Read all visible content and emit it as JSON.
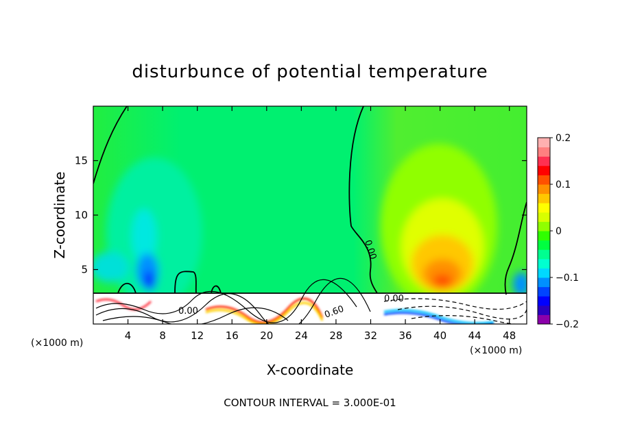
{
  "chart_data": {
    "type": "heatmap",
    "title": "disturbunce of potential temperature",
    "xlabel": "X-coordinate",
    "ylabel": "Z-coordinate",
    "x_unit_left": "(×1000 m)",
    "x_unit_right": "(×1000 m)",
    "xlim": [
      0,
      50
    ],
    "ylim": [
      0,
      20
    ],
    "x_ticks": [
      4,
      8,
      12,
      16,
      20,
      24,
      28,
      32,
      36,
      40,
      44,
      48
    ],
    "x_tick_labels": [
      "4",
      "8",
      "12",
      "16",
      "20",
      "24",
      "28",
      "32",
      "36",
      "40",
      "44",
      "48"
    ],
    "y_ticks": [
      5,
      10,
      15
    ],
    "y_tick_labels": [
      "5",
      "10",
      "15"
    ],
    "colorbar": {
      "min": -0.2,
      "max": 0.2,
      "tick_values": [
        0.2,
        0.1,
        0,
        -0.1,
        -0.2
      ],
      "tick_labels": [
        "0.2",
        "0.1",
        "0",
        "−0.1",
        "−0.2"
      ],
      "colors": [
        "#8b00aa",
        "#2a00c0",
        "#0000ff",
        "#0044ff",
        "#0090ff",
        "#00d8ff",
        "#00ffd0",
        "#00ff90",
        "#00ff40",
        "#30ff00",
        "#90ff00",
        "#d8ff00",
        "#ffff00",
        "#ffc800",
        "#ff9000",
        "#ff5000",
        "#ff0000",
        "#ff3050",
        "#ff8080",
        "#ffb0b0"
      ]
    },
    "contour_labels": [
      "0.00",
      "0.00",
      "0.00",
      "0.60"
    ],
    "footer": "CONTOUR INTERVAL = 3.000E-01"
  }
}
